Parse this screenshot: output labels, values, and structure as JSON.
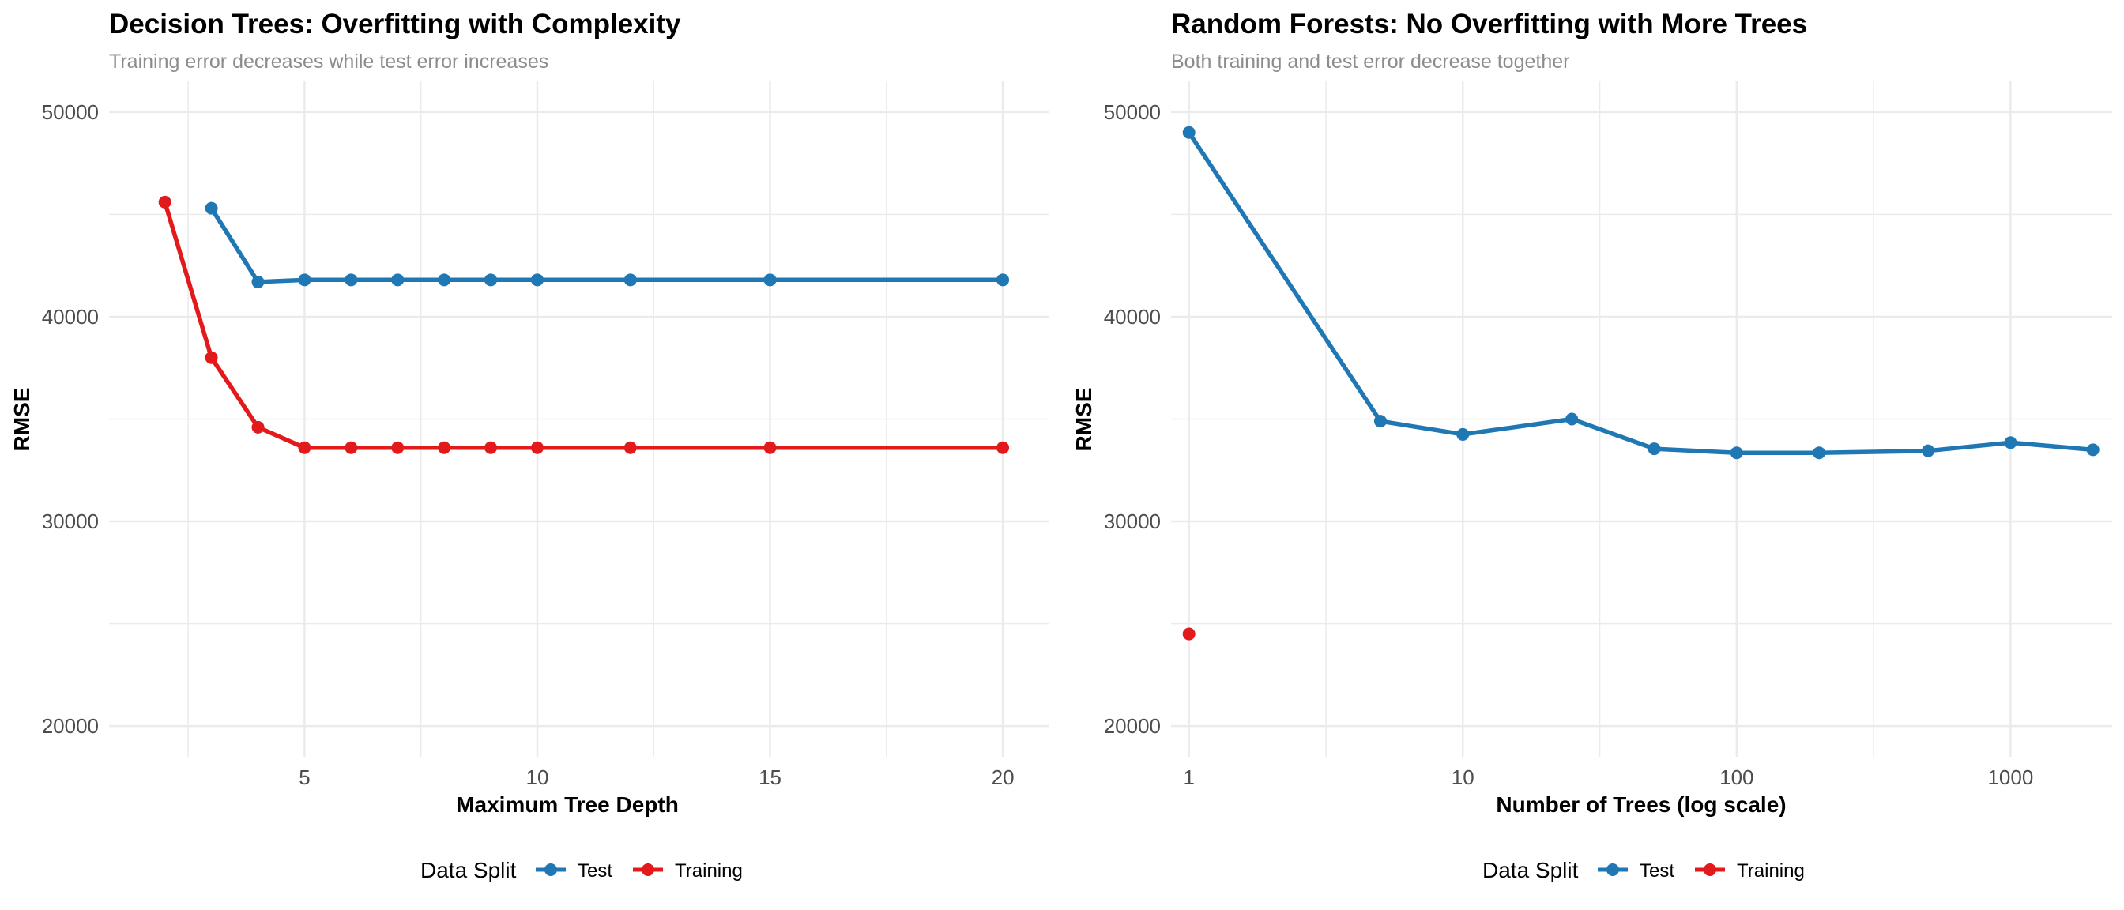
{
  "legend_title": "Data Split",
  "colors": {
    "test": "#1F78B4",
    "training": "#E31A1C",
    "grid": "#EBEBEB",
    "tick": "#4D4D4D",
    "subtitle": "#8C8C8C",
    "title": "#000000"
  },
  "chart_data": [
    {
      "type": "line",
      "title": "Decision Trees: Overfitting with Complexity",
      "subtitle": "Training error decreases while test error increases",
      "xlabel": "Maximum Tree Depth",
      "ylabel": "RMSE",
      "xscale": "linear",
      "xlim": [
        0.8,
        21
      ],
      "ylim": [
        18500,
        51500
      ],
      "xticks": [
        5,
        10,
        15,
        20
      ],
      "xticklabels": [
        "5",
        "10",
        "15",
        "20"
      ],
      "xminor": [
        2.5,
        7.5,
        12.5,
        17.5
      ],
      "yticks": [
        20000,
        30000,
        40000,
        50000
      ],
      "yticklabels": [
        "20000",
        "30000",
        "40000",
        "50000"
      ],
      "yminor": [
        25000,
        35000,
        45000
      ],
      "grid": true,
      "legend_position": "bottom",
      "series": [
        {
          "name": "Test",
          "color_key": "test",
          "x": [
            3,
            4,
            5,
            6,
            7,
            8,
            9,
            10,
            12,
            15,
            20
          ],
          "y": [
            45300,
            41700,
            41800,
            41800,
            41800,
            41800,
            41800,
            41800,
            41800,
            41800,
            41800
          ]
        },
        {
          "name": "Training",
          "color_key": "training",
          "x": [
            2,
            3,
            4,
            5,
            6,
            7,
            8,
            9,
            10,
            12,
            15,
            20
          ],
          "y": [
            45600,
            38000,
            34600,
            33600,
            33600,
            33600,
            33600,
            33600,
            33600,
            33600,
            33600,
            33600
          ]
        }
      ]
    },
    {
      "type": "line",
      "title": "Random Forests: No Overfitting with More Trees",
      "subtitle": "Both training and test error decrease together",
      "xlabel": "Number of Trees (log scale)",
      "ylabel": "RMSE",
      "xscale": "log10",
      "xlim": [
        0.86,
        2350
      ],
      "ylim": [
        18500,
        51500
      ],
      "xticks": [
        1,
        10,
        100,
        1000
      ],
      "xticklabels": [
        "1",
        "10",
        "100",
        "1000"
      ],
      "xminor": [
        3.1623,
        31.623,
        316.23
      ],
      "yticks": [
        20000,
        30000,
        40000,
        50000
      ],
      "yticklabels": [
        "20000",
        "30000",
        "40000",
        "50000"
      ],
      "yminor": [
        25000,
        35000,
        45000
      ],
      "grid": true,
      "legend_position": "bottom",
      "series": [
        {
          "name": "Test",
          "color_key": "test",
          "x": [
            1,
            5,
            10,
            25,
            50,
            100,
            200,
            500,
            1000,
            2000
          ],
          "y": [
            49000,
            34900,
            34250,
            35000,
            33550,
            33350,
            33350,
            33450,
            33850,
            33500
          ]
        },
        {
          "name": "Training",
          "color_key": "training",
          "x": [
            1
          ],
          "y": [
            24500
          ]
        }
      ]
    }
  ]
}
